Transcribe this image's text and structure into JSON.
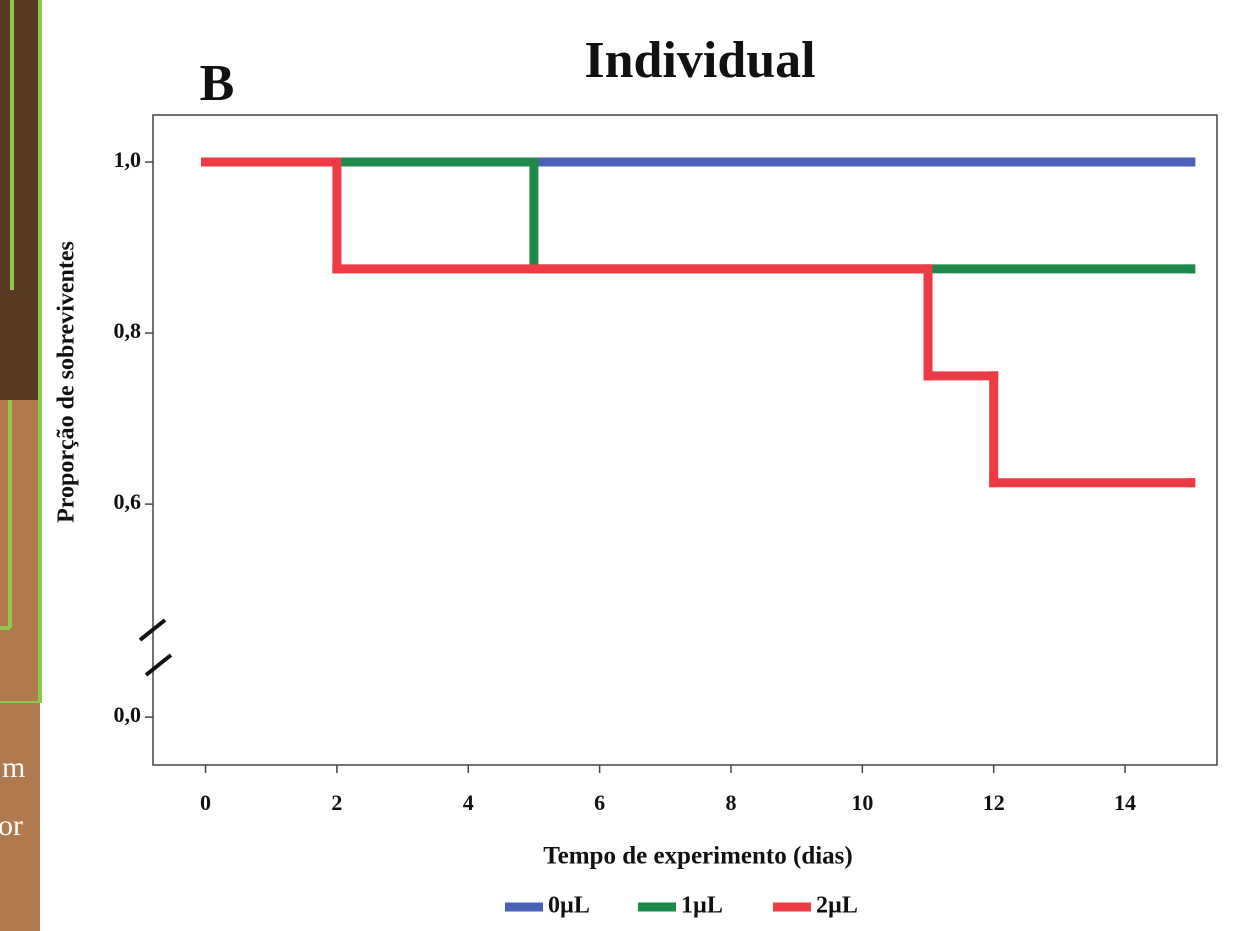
{
  "side_text": [
    "m",
    "or"
  ],
  "chart_data": {
    "type": "step",
    "panel_label": "B",
    "title": "Individual",
    "x_label": "Tempo de experimento (dias)",
    "y_label": "Proporção de sobreviventes",
    "xlim": [
      -0.8,
      15.4
    ],
    "xticks": [
      0,
      2,
      4,
      6,
      8,
      10,
      12,
      14
    ],
    "ylim": [
      -0.056,
      1.055
    ],
    "ybreak": [
      0,
      0.6
    ],
    "yticks": [
      {
        "value": 0,
        "label": "0,0"
      },
      {
        "value": 0.6,
        "label": "0,6"
      },
      {
        "value": 0.8,
        "label": "0,8"
      },
      {
        "value": 1,
        "label": "1,0"
      }
    ],
    "series": [
      {
        "name": "0µL",
        "color": "#4a62b8",
        "x": [
          0,
          15
        ],
        "values": [
          1,
          1
        ]
      },
      {
        "name": "1µL",
        "color": "#1e8a4a",
        "x": [
          0,
          5,
          15
        ],
        "values": [
          1,
          0.875,
          0.875
        ]
      },
      {
        "name": "2µL",
        "color": "#ee3a45",
        "x": [
          0,
          2,
          11,
          12,
          15
        ],
        "values": [
          1,
          0.875,
          0.75,
          0.625,
          0.625
        ]
      }
    ]
  }
}
